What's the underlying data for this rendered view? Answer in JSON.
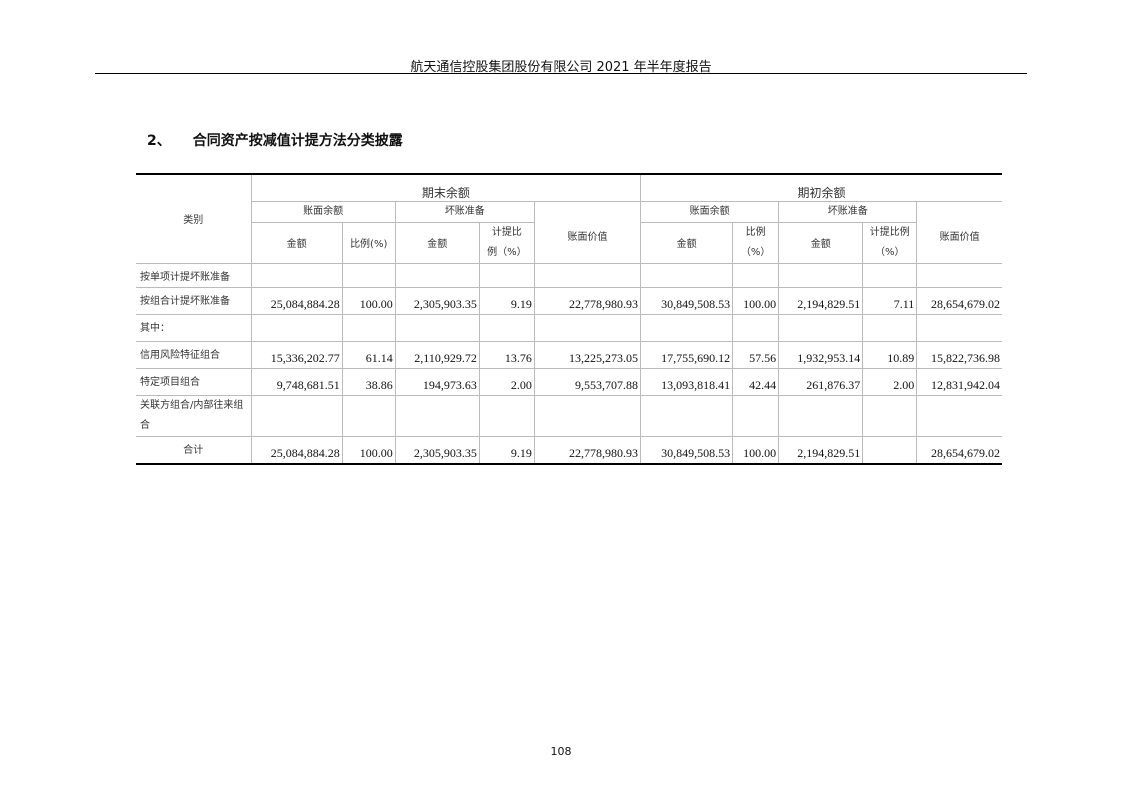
{
  "header": {
    "title": "航天通信控股集团股份有限公司 2021 年半年度报告"
  },
  "section": {
    "number": "2、",
    "title": "合同资产按减值计提方法分类披露"
  },
  "table": {
    "col_category": "类别",
    "period_end": "期末余额",
    "period_begin": "期初余额",
    "book_balance": "账面余额",
    "bad_debt": "坏账准备",
    "book_value": "账面价值",
    "amount": "金额",
    "ratio_end": "比例(%)",
    "provision_ratio_end_1": "计提比",
    "provision_ratio_end_2": "例（%）",
    "ratio_begin_1": "比例",
    "ratio_begin_2": "（%）",
    "provision_ratio_begin_1": "计提比例",
    "provision_ratio_begin_2": "（%）",
    "rows": [
      {
        "label": "按单项计提坏账准备",
        "values": [
          "",
          "",
          "",
          "",
          "",
          "",
          "",
          "",
          "",
          ""
        ]
      },
      {
        "label": "按组合计提坏账准备",
        "values": [
          "25,084,884.28",
          "100.00",
          "2,305,903.35",
          "9.19",
          "22,778,980.93",
          "30,849,508.53",
          "100.00",
          "2,194,829.51",
          "7.11",
          "28,654,679.02"
        ]
      },
      {
        "label": "其中：",
        "values": [
          "",
          "",
          "",
          "",
          "",
          "",
          "",
          "",
          "",
          ""
        ]
      },
      {
        "label": "信用风险特征组合",
        "values": [
          "15,336,202.77",
          "61.14",
          "2,110,929.72",
          "13.76",
          "13,225,273.05",
          "17,755,690.12",
          "57.56",
          "1,932,953.14",
          "10.89",
          "15,822,736.98"
        ]
      },
      {
        "label": "特定项目组合",
        "values": [
          "9,748,681.51",
          "38.86",
          "194,973.63",
          "2.00",
          "9,553,707.88",
          "13,093,818.41",
          "42.44",
          "261,876.37",
          "2.00",
          "12,831,942.04"
        ]
      },
      {
        "label": "关联方组合/内部往来组合",
        "values": [
          "",
          "",
          "",
          "",
          "",
          "",
          "",
          "",
          "",
          ""
        ]
      },
      {
        "label": "合计",
        "values": [
          "25,084,884.28",
          "100.00",
          "2,305,903.35",
          "9.19",
          "22,778,980.93",
          "30,849,508.53",
          "100.00",
          "2,194,829.51",
          "",
          "28,654,679.02"
        ]
      }
    ]
  },
  "footer": {
    "page": "108"
  }
}
